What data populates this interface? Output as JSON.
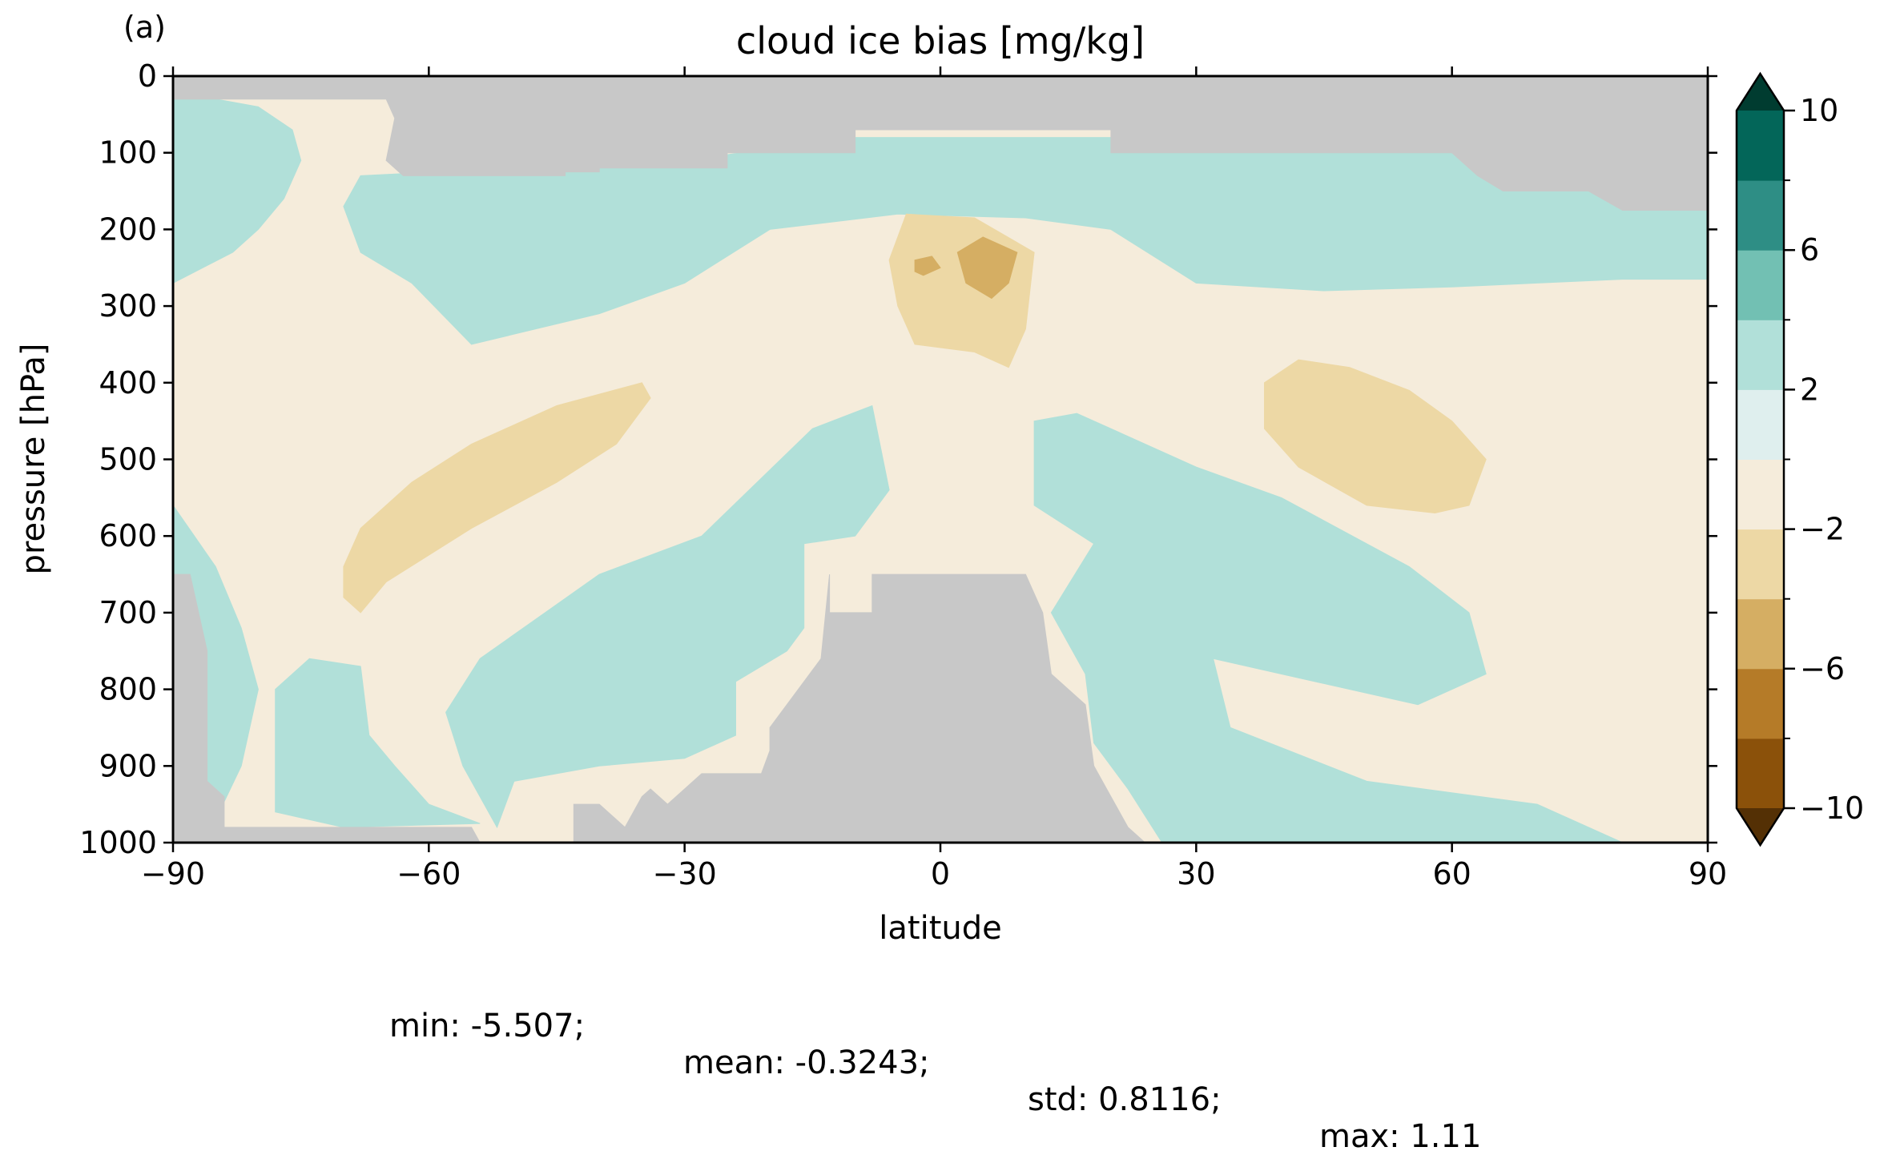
{
  "chart_data": {
    "type": "contour",
    "panel_label": "(a)",
    "title": "cloud ice bias [mg/kg]",
    "xlabel": "latitude",
    "ylabel": "pressure [hPa]",
    "xlim": [
      -90,
      90
    ],
    "ylim": [
      1000,
      0
    ],
    "x_ticks": [
      -90,
      -60,
      -30,
      0,
      30,
      60,
      90
    ],
    "x_tick_labels": [
      "−90",
      "−60",
      "−30",
      "0",
      "30",
      "60",
      "90"
    ],
    "y_ticks": [
      0,
      100,
      200,
      300,
      400,
      500,
      600,
      700,
      800,
      900,
      1000
    ],
    "y_tick_labels": [
      "0",
      "100",
      "200",
      "300",
      "400",
      "500",
      "600",
      "700",
      "800",
      "900",
      "1000"
    ],
    "grid": false,
    "missing_color": "#c8c8c8",
    "colorbar": {
      "levels": [
        -10,
        -8,
        -6,
        -4,
        -2,
        0,
        2,
        4,
        6,
        8,
        10
      ],
      "tick_values": [
        10,
        6,
        2,
        -2,
        -6,
        -10
      ],
      "tick_labels": [
        "10",
        "6",
        "2",
        "−2",
        "−6",
        "−10"
      ],
      "colors": [
        "#8b510a",
        "#b57b28",
        "#d5ae63",
        "#edd8a5",
        "#f5ecdb",
        "#dfefee",
        "#b1e0d9",
        "#72c0b3",
        "#2e8e85",
        "#036659"
      ],
      "extend_low_color": "#543005",
      "extend_high_color": "#003c30",
      "extend": "both"
    },
    "regions": [
      {
        "level": -1,
        "value_range": [
          -2,
          0
        ],
        "points": [
          [
            -90,
            30
          ],
          [
            90,
            30
          ],
          [
            90,
            1000
          ],
          [
            -90,
            1000
          ]
        ]
      },
      {
        "level": 1,
        "value_range": [
          0,
          2
        ],
        "points": [
          [
            -90,
            25
          ],
          [
            -85,
            30
          ],
          [
            -80,
            40
          ],
          [
            -76,
            70
          ],
          [
            -75,
            110
          ],
          [
            -77,
            160
          ],
          [
            -80,
            200
          ],
          [
            -83,
            230
          ],
          [
            -90,
            270
          ]
        ]
      },
      {
        "level": 1,
        "value_range": [
          0,
          2
        ],
        "points": [
          [
            -68,
            130
          ],
          [
            -50,
            120
          ],
          [
            -30,
            110
          ],
          [
            -10,
            80
          ],
          [
            20,
            80
          ],
          [
            60,
            100
          ],
          [
            90,
            160
          ],
          [
            90,
            265
          ],
          [
            80,
            265
          ],
          [
            60,
            275
          ],
          [
            45,
            280
          ],
          [
            30,
            270
          ],
          [
            20,
            200
          ],
          [
            10,
            185
          ],
          [
            -5,
            180
          ],
          [
            -20,
            200
          ],
          [
            -30,
            270
          ],
          [
            -40,
            310
          ],
          [
            -55,
            350
          ],
          [
            -62,
            270
          ],
          [
            -68,
            230
          ],
          [
            -70,
            170
          ]
        ]
      },
      {
        "level": 1,
        "value_range": [
          0,
          2
        ],
        "points": [
          [
            -90,
            560
          ],
          [
            -85,
            640
          ],
          [
            -82,
            720
          ],
          [
            -80,
            800
          ],
          [
            -82,
            900
          ],
          [
            -85,
            970
          ],
          [
            -90,
            980
          ]
        ]
      },
      {
        "level": 1,
        "value_range": [
          0,
          2
        ],
        "points": [
          [
            -78,
            800
          ],
          [
            -74,
            760
          ],
          [
            -68,
            770
          ],
          [
            -67,
            860
          ],
          [
            -64,
            900
          ],
          [
            -60,
            950
          ],
          [
            -54,
            975
          ],
          [
            -70,
            980
          ],
          [
            -78,
            960
          ]
        ]
      },
      {
        "level": 1,
        "value_range": [
          0,
          2
        ],
        "points": [
          [
            -54,
            760
          ],
          [
            -40,
            650
          ],
          [
            -28,
            600
          ],
          [
            -15,
            460
          ],
          [
            -8,
            430
          ],
          [
            -6,
            540
          ],
          [
            -10,
            600
          ],
          [
            -16,
            610
          ],
          [
            -16,
            720
          ],
          [
            -18,
            750
          ],
          [
            -24,
            790
          ],
          [
            -24,
            860
          ],
          [
            -30,
            890
          ],
          [
            -40,
            900
          ],
          [
            -50,
            920
          ],
          [
            -52,
            980
          ],
          [
            -56,
            900
          ],
          [
            -58,
            830
          ]
        ]
      },
      {
        "level": 1,
        "value_range": [
          0,
          2
        ],
        "points": [
          [
            11,
            450
          ],
          [
            16,
            440
          ],
          [
            22,
            470
          ],
          [
            30,
            510
          ],
          [
            40,
            550
          ],
          [
            55,
            640
          ],
          [
            62,
            700
          ],
          [
            64,
            780
          ],
          [
            56,
            820
          ],
          [
            40,
            780
          ],
          [
            32,
            760
          ],
          [
            34,
            850
          ],
          [
            50,
            920
          ],
          [
            70,
            950
          ],
          [
            80,
            1000
          ],
          [
            26,
            1000
          ],
          [
            22,
            930
          ],
          [
            18,
            870
          ],
          [
            17,
            780
          ],
          [
            13,
            700
          ],
          [
            18,
            610
          ],
          [
            11,
            560
          ]
        ]
      },
      {
        "level": -2,
        "value_range": [
          -4,
          -2
        ],
        "points": [
          [
            -70,
            640
          ],
          [
            -68,
            590
          ],
          [
            -62,
            530
          ],
          [
            -55,
            480
          ],
          [
            -45,
            430
          ],
          [
            -35,
            400
          ],
          [
            -34,
            420
          ],
          [
            -38,
            480
          ],
          [
            -45,
            530
          ],
          [
            -55,
            590
          ],
          [
            -65,
            660
          ],
          [
            -68,
            700
          ],
          [
            -70,
            680
          ]
        ]
      },
      {
        "level": -2,
        "value_range": [
          -4,
          -2
        ],
        "points": [
          [
            38,
            400
          ],
          [
            42,
            370
          ],
          [
            48,
            380
          ],
          [
            55,
            410
          ],
          [
            60,
            450
          ],
          [
            64,
            500
          ],
          [
            62,
            560
          ],
          [
            58,
            570
          ],
          [
            50,
            560
          ],
          [
            42,
            510
          ],
          [
            38,
            460
          ]
        ]
      },
      {
        "level": -2,
        "value_range": [
          -4,
          -2
        ],
        "points": [
          [
            -6,
            240
          ],
          [
            -4,
            180
          ],
          [
            4,
            185
          ],
          [
            11,
            230
          ],
          [
            10,
            330
          ],
          [
            8,
            380
          ],
          [
            4,
            360
          ],
          [
            -3,
            350
          ],
          [
            -5,
            300
          ]
        ]
      },
      {
        "level": -3,
        "value_range": [
          -6,
          -4
        ],
        "points": [
          [
            2,
            230
          ],
          [
            5,
            210
          ],
          [
            9,
            230
          ],
          [
            8,
            270
          ],
          [
            6,
            290
          ],
          [
            3,
            270
          ]
        ]
      },
      {
        "level": -3,
        "value_range": [
          -6,
          -4
        ],
        "points": [
          [
            -3,
            240
          ],
          [
            -1,
            235
          ],
          [
            0,
            250
          ],
          [
            -2,
            260
          ],
          [
            -3,
            255
          ]
        ]
      }
    ],
    "missing_regions": [
      {
        "points": [
          [
            -90,
            0
          ],
          [
            90,
            0
          ],
          [
            90,
            175
          ],
          [
            80,
            175
          ],
          [
            76,
            150
          ],
          [
            66,
            150
          ],
          [
            63,
            130
          ],
          [
            60,
            100
          ],
          [
            55,
            100
          ],
          [
            20,
            100
          ],
          [
            20,
            70
          ],
          [
            -10,
            70
          ],
          [
            -10,
            100
          ],
          [
            -25,
            100
          ],
          [
            -25,
            120
          ],
          [
            -40,
            120
          ],
          [
            -40,
            125
          ],
          [
            -44,
            125
          ],
          [
            -44,
            130
          ],
          [
            -63,
            130
          ],
          [
            -65,
            110
          ],
          [
            -64,
            55
          ],
          [
            -65,
            30
          ],
          [
            -90,
            30
          ]
        ]
      },
      {
        "points": [
          [
            -13,
            650
          ],
          [
            -13,
            700
          ],
          [
            -8,
            700
          ],
          [
            -8,
            650
          ],
          [
            10,
            650
          ],
          [
            12,
            700
          ],
          [
            13,
            780
          ],
          [
            17,
            820
          ],
          [
            18,
            900
          ],
          [
            20,
            940
          ],
          [
            22,
            980
          ],
          [
            24,
            1000
          ],
          [
            -43,
            1000
          ],
          [
            -43,
            950
          ],
          [
            -40,
            950
          ],
          [
            -37,
            980
          ],
          [
            -35,
            940
          ],
          [
            -34,
            930
          ],
          [
            -32,
            950
          ],
          [
            -28,
            910
          ],
          [
            -21,
            910
          ],
          [
            -20,
            880
          ],
          [
            -20,
            850
          ],
          [
            -14,
            760
          ]
        ]
      },
      {
        "points": [
          [
            -90,
            650
          ],
          [
            -88,
            650
          ],
          [
            -86,
            750
          ],
          [
            -86,
            920
          ],
          [
            -84,
            940
          ],
          [
            -84,
            980
          ],
          [
            -55,
            980
          ],
          [
            -54,
            1000
          ],
          [
            -90,
            1000
          ]
        ]
      }
    ],
    "stats": {
      "min": "min: -5.507;",
      "mean": "mean: -0.3243;",
      "std": "std: 0.8116;",
      "max": "max: 1.11"
    }
  }
}
